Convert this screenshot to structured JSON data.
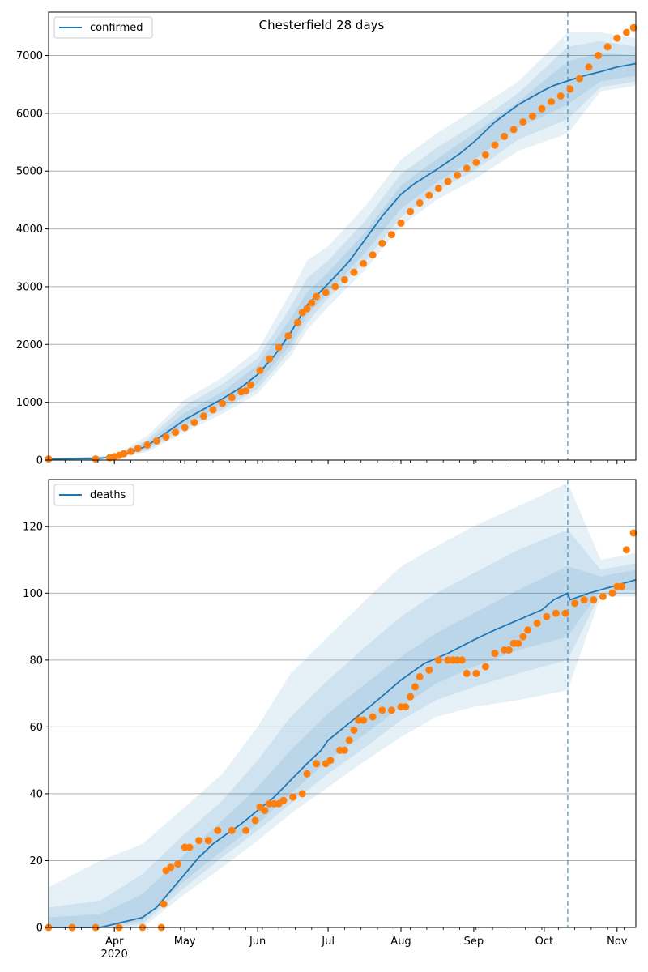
{
  "title": "Chesterfield 28 days",
  "colors": {
    "model": "#1f77b4",
    "observed": "#ff7f0e",
    "band": "#1f77b4",
    "vline": "#1f77b4",
    "grid": "#b0b0b0"
  },
  "chart_data": [
    {
      "type": "line",
      "title": "Chesterfield 28 days",
      "legend": "top-left",
      "legend_label": "confirmed",
      "xlim": [
        0,
        250
      ],
      "ylim": [
        0,
        7750
      ],
      "yticks": [
        0,
        1000,
        2000,
        3000,
        4000,
        5000,
        6000,
        7000
      ],
      "xticks": [
        {
          "x": 28,
          "label": "Apr",
          "sub": "2020"
        },
        {
          "x": 58,
          "label": "May",
          "sub": ""
        },
        {
          "x": 89,
          "label": "Jun",
          "sub": ""
        },
        {
          "x": 119,
          "label": "Jul",
          "sub": ""
        },
        {
          "x": 150,
          "label": "Aug",
          "sub": ""
        },
        {
          "x": 181,
          "label": "Sep",
          "sub": ""
        },
        {
          "x": 211,
          "label": "Oct",
          "sub": ""
        },
        {
          "x": 242,
          "label": "Nov",
          "sub": ""
        }
      ],
      "forecast_start": 221,
      "model": {
        "x": [
          0,
          20,
          28,
          35,
          42,
          50,
          58,
          66,
          74,
          82,
          89,
          96,
          103,
          110,
          119,
          128,
          135,
          142,
          150,
          156,
          165,
          175,
          181,
          190,
          200,
          210,
          215,
          221,
          228,
          235,
          242,
          250
        ],
        "y": [
          20,
          25,
          50,
          130,
          250,
          470,
          700,
          880,
          1060,
          1260,
          1480,
          1800,
          2200,
          2680,
          3050,
          3440,
          3830,
          4220,
          4600,
          4790,
          5020,
          5300,
          5500,
          5850,
          6150,
          6380,
          6480,
          6560,
          6650,
          6720,
          6800,
          6860
        ]
      },
      "bands": [
        {
          "x": [
            0,
            28,
            42,
            58,
            74,
            89,
            103,
            110,
            119,
            135,
            150,
            165,
            181,
            200,
            221,
            235,
            250
          ],
          "lower": [
            0,
            30,
            140,
            480,
            800,
            1150,
            1800,
            2250,
            2650,
            3300,
            4050,
            4500,
            4850,
            5350,
            5650,
            6380,
            6480
          ],
          "upper": [
            30,
            80,
            420,
            1050,
            1430,
            1900,
            2900,
            3450,
            3700,
            4400,
            5200,
            5650,
            6050,
            6550,
            7400,
            7400,
            7300
          ]
        },
        {
          "x": [
            0,
            28,
            42,
            58,
            74,
            89,
            103,
            110,
            119,
            135,
            150,
            165,
            181,
            200,
            221,
            235,
            250
          ],
          "lower": [
            0,
            35,
            170,
            540,
            870,
            1230,
            1900,
            2380,
            2800,
            3450,
            4200,
            4650,
            5000,
            5550,
            5900,
            6450,
            6550
          ],
          "upper": [
            25,
            70,
            350,
            940,
            1310,
            1760,
            2650,
            3150,
            3450,
            4150,
            4950,
            5400,
            5800,
            6350,
            7150,
            7250,
            7150
          ]
        },
        {
          "x": [
            0,
            28,
            42,
            58,
            74,
            89,
            103,
            110,
            119,
            135,
            150,
            165,
            181,
            200,
            221,
            235,
            250
          ],
          "lower": [
            5,
            40,
            200,
            600,
            950,
            1320,
            2000,
            2500,
            2900,
            3600,
            4350,
            4800,
            5200,
            5750,
            6150,
            6550,
            6650
          ],
          "upper": [
            22,
            60,
            300,
            820,
            1180,
            1640,
            2450,
            2900,
            3250,
            3950,
            4750,
            5200,
            5650,
            6200,
            6900,
            7050,
            7000
          ]
        }
      ],
      "observed": {
        "x": [
          0,
          20,
          26,
          28,
          30,
          32,
          35,
          38,
          42,
          46,
          50,
          54,
          58,
          62,
          66,
          70,
          74,
          78,
          82,
          84,
          86,
          90,
          94,
          98,
          102,
          106,
          108,
          110,
          112,
          114,
          118,
          122,
          126,
          130,
          134,
          138,
          142,
          146,
          150,
          154,
          158,
          162,
          166,
          170,
          174,
          178,
          182,
          186,
          190,
          194,
          198,
          202,
          206,
          210,
          214,
          218,
          222,
          226,
          230,
          234,
          238,
          242,
          246,
          249
        ],
        "y": [
          20,
          20,
          40,
          60,
          80,
          110,
          150,
          200,
          260,
          330,
          400,
          480,
          560,
          650,
          760,
          870,
          980,
          1080,
          1180,
          1200,
          1300,
          1550,
          1750,
          1950,
          2150,
          2380,
          2550,
          2620,
          2720,
          2830,
          2900,
          3000,
          3120,
          3250,
          3400,
          3550,
          3750,
          3900,
          4100,
          4300,
          4450,
          4580,
          4700,
          4820,
          4930,
          5050,
          5150,
          5280,
          5450,
          5600,
          5720,
          5850,
          5950,
          6080,
          6200,
          6300,
          6420,
          6600,
          6800,
          7000,
          7150,
          7300,
          7400,
          7480
        ]
      }
    },
    {
      "type": "line",
      "title": "",
      "legend": "top-left",
      "legend_label": "deaths",
      "xlim": [
        0,
        250
      ],
      "ylim": [
        0,
        134
      ],
      "yticks": [
        0,
        20,
        40,
        60,
        80,
        100,
        120
      ],
      "xticks": [
        {
          "x": 28,
          "label": "Apr",
          "sub": "2020"
        },
        {
          "x": 58,
          "label": "May",
          "sub": ""
        },
        {
          "x": 89,
          "label": "Jun",
          "sub": ""
        },
        {
          "x": 119,
          "label": "Jul",
          "sub": ""
        },
        {
          "x": 150,
          "label": "Aug",
          "sub": ""
        },
        {
          "x": 181,
          "label": "Sep",
          "sub": ""
        },
        {
          "x": 211,
          "label": "Oct",
          "sub": ""
        },
        {
          "x": 242,
          "label": "Nov",
          "sub": ""
        }
      ],
      "forecast_start": 221,
      "model": {
        "x": [
          0,
          22,
          34,
          40,
          46,
          52,
          58,
          64,
          70,
          76,
          82,
          89,
          96,
          103,
          110,
          116,
          119,
          126,
          133,
          140,
          150,
          160,
          170,
          181,
          190,
          200,
          210,
          215,
          221,
          222,
          230,
          240,
          250
        ],
        "y": [
          0,
          0,
          2,
          3,
          6,
          11,
          16,
          21,
          25,
          28,
          31,
          35,
          39,
          44,
          49,
          53,
          56,
          60,
          64,
          68,
          74,
          79,
          82,
          86,
          89,
          92,
          95,
          98,
          100,
          98,
          100,
          102,
          104
        ]
      },
      "bands": [
        {
          "x": [
            0,
            22,
            40,
            58,
            74,
            89,
            103,
            119,
            135,
            150,
            165,
            181,
            200,
            221,
            235,
            250
          ],
          "lower": [
            0,
            0,
            0,
            10,
            18,
            26,
            34,
            42,
            50,
            57,
            63,
            66,
            68,
            71,
            99,
            99
          ],
          "upper": [
            12,
            20,
            25,
            36,
            46,
            60,
            76,
            87,
            98,
            108,
            114,
            120,
            126,
            133,
            110,
            112
          ]
        },
        {
          "x": [
            0,
            22,
            40,
            58,
            74,
            89,
            103,
            119,
            135,
            150,
            165,
            181,
            200,
            221,
            235,
            250
          ],
          "lower": [
            0,
            0,
            1,
            12,
            21,
            29,
            37,
            46,
            54,
            62,
            68,
            72,
            76,
            80,
            100,
            100
          ],
          "upper": [
            6,
            8,
            16,
            28,
            38,
            50,
            63,
            74,
            84,
            93,
            100,
            106,
            113,
            119,
            107,
            109
          ]
        },
        {
          "x": [
            0,
            22,
            40,
            58,
            74,
            89,
            103,
            119,
            135,
            150,
            165,
            181,
            200,
            221,
            235,
            250
          ],
          "lower": [
            0,
            0,
            2,
            14,
            23,
            31,
            40,
            50,
            58,
            66,
            73,
            78,
            83,
            87,
            101,
            101
          ],
          "upper": [
            3,
            4,
            10,
            22,
            32,
            42,
            53,
            64,
            73,
            81,
            88,
            94,
            101,
            108,
            105,
            107
          ]
        }
      ],
      "observed": {
        "x": [
          0,
          10,
          20,
          30,
          40,
          48,
          49,
          50,
          52,
          55,
          58,
          60,
          64,
          68,
          72,
          78,
          84,
          88,
          90,
          92,
          94,
          96,
          98,
          100,
          104,
          108,
          110,
          114,
          118,
          120,
          124,
          126,
          128,
          130,
          132,
          134,
          138,
          142,
          146,
          150,
          152,
          154,
          156,
          158,
          162,
          166,
          170,
          172,
          174,
          176,
          178,
          182,
          186,
          190,
          194,
          196,
          198,
          200,
          202,
          204,
          208,
          212,
          216,
          220,
          224,
          228,
          232,
          236,
          240,
          242,
          244,
          246,
          249
        ],
        "y": [
          0,
          0,
          0,
          0,
          0,
          0,
          7,
          17,
          18,
          19,
          24,
          24,
          26,
          26,
          29,
          29,
          29,
          32,
          36,
          35,
          37,
          37,
          37,
          38,
          39,
          40,
          46,
          49,
          49,
          50,
          53,
          53,
          56,
          59,
          62,
          62,
          63,
          65,
          65,
          66,
          66,
          69,
          72,
          75,
          77,
          80,
          80,
          80,
          80,
          80,
          76,
          76,
          78,
          82,
          83,
          83,
          85,
          85,
          87,
          89,
          91,
          93,
          94,
          94,
          97,
          98,
          98,
          99,
          100,
          102,
          102,
          113,
          118
        ]
      }
    }
  ]
}
